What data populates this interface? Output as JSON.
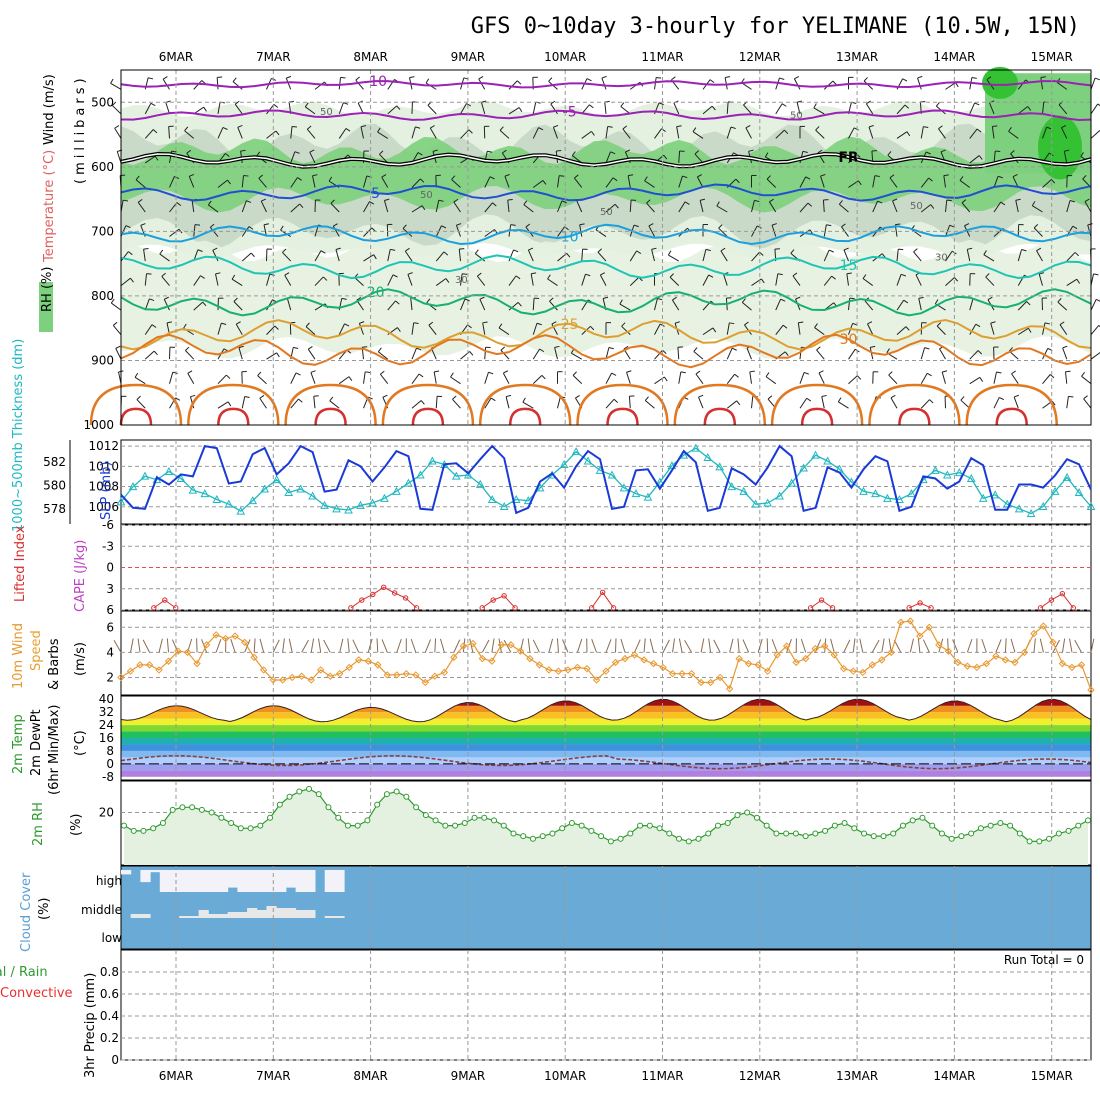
{
  "title": "GFS 0~10day 3-hourly for YELIMANE (10.5W, 15N)",
  "colors": {
    "rh_light": "#e4f1e0",
    "rh_mid": "#c6d6c4",
    "rh_green": "#7dd07d",
    "rh_bright": "#34c234",
    "temp_purple": "#9b22b5",
    "temp_blue": "#1f50d0",
    "temp_cyan": "#1aa0dd",
    "temp_teal": "#1ec4b4",
    "temp_green": "#18b070",
    "temp_gold": "#dda030",
    "temp_orange": "#e27820",
    "temp_red": "#d43030",
    "slp": "#1a3ad8",
    "thickness": "#20b8c0",
    "cape": "#c040c0",
    "lifted": "#d83030",
    "wind10": "#e89830",
    "dew": "#8a4040",
    "rh2m": "#2f9a2f",
    "cloud": "#6aaad6",
    "cloud_gap": "#f2f2f8"
  },
  "chart_data": [
    {
      "type": "heatmap",
      "panel": "upper-air",
      "ylabel": "(millibars)",
      "label_rh": "RH (%)",
      "label_temp": "Temperature (°C)",
      "label_wind": "Wind (m/s)",
      "ylim": [
        1000,
        450
      ],
      "yticks": [
        500,
        600,
        700,
        800,
        900,
        1000
      ],
      "temp_contours": [
        {
          "value": -10,
          "label": "-10",
          "pressure": 472
        },
        {
          "value": -5,
          "label": "-5",
          "pressure": 520
        },
        {
          "value": 0,
          "label": "FR",
          "pressure": 590
        },
        {
          "value": 5,
          "label": "5",
          "pressure": 640
        },
        {
          "value": 10,
          "label": "10",
          "pressure": 705
        },
        {
          "value": 15,
          "label": "15",
          "pressure": 755
        },
        {
          "value": 20,
          "label": "20",
          "pressure": 810
        },
        {
          "value": 25,
          "label": "25",
          "pressure": 860
        },
        {
          "value": 30,
          "label": "30",
          "pressure": 885
        }
      ],
      "rh_labels": [
        "50",
        "50",
        "50",
        "50",
        "50",
        "30",
        "30"
      ]
    },
    {
      "type": "line",
      "panel": "slp-thickness",
      "ylabel_left": "1000~500mb Thickness (dm)",
      "ylabel_right": "SLP (mb)",
      "yticks_left": [
        578,
        580,
        582
      ],
      "yticks_right": [
        1006,
        1008,
        1010,
        1012
      ],
      "ylim_slp": [
        1004.3,
        1012.6
      ],
      "ylim_thickness": [
        576.7,
        583.9
      ],
      "series": [
        {
          "name": "SLP",
          "values": [
            1007.2,
            1005.9,
            1005.8,
            1008.9,
            1008.2,
            1009.2,
            1009.0,
            1012.0,
            1011.8,
            1008.3,
            1008.5,
            1011.2,
            1011.8,
            1009.2,
            1010.3,
            1012.0,
            1011.4,
            1007.5,
            1007.7,
            1010.6,
            1010.0,
            1008.5,
            1009.9,
            1011.5,
            1011.0,
            1005.8,
            1005.7,
            1010.2,
            1010.3,
            1009.3,
            1010.7,
            1012.0,
            1010.8,
            1005.4,
            1005.9,
            1008.5,
            1009.3,
            1007.9,
            1010.0,
            1011.5,
            1010.7,
            1005.8,
            1006.0,
            1009.6,
            1009.7,
            1007.8,
            1009.6,
            1011.5,
            1010.4,
            1005.6,
            1005.9,
            1009.8,
            1009.2,
            1008.2,
            1009.9,
            1012.0,
            1011.0,
            1005.6,
            1005.9,
            1009.9,
            1009.4,
            1007.9,
            1009.7,
            1011.0,
            1010.5,
            1005.6,
            1006.0,
            1009.0,
            1008.8,
            1007.8,
            1008.5,
            1010.8,
            1010.1,
            1005.7,
            1005.7,
            1008.2,
            1008.2,
            1007.9,
            1009.1,
            1010.7,
            1010.2,
            1007.7
          ]
        },
        {
          "name": "Thickness",
          "values": [
            578.6,
            579.9,
            580.8,
            580.5,
            581.2,
            580.6,
            579.6,
            579.3,
            578.8,
            578.4,
            577.8,
            578.7,
            579.7,
            580.5,
            579.4,
            579.7,
            579.1,
            578.3,
            578.0,
            577.9,
            578.3,
            578.5,
            578.9,
            579.5,
            580.2,
            580.9,
            582.1,
            581.8,
            580.8,
            580.9,
            580.1,
            578.8,
            578.2,
            578.8,
            578.7,
            579.8,
            580.9,
            581.8,
            582.9,
            582.1,
            581.3,
            580.9,
            579.8,
            579.3,
            579.0,
            580.3,
            581.7,
            582.6,
            583.2,
            582.4,
            581.6,
            579.9,
            579.5,
            578.4,
            578.5,
            579.1,
            580.2,
            581.5,
            582.6,
            582.1,
            581.4,
            580.3,
            579.5,
            579.3,
            578.9,
            578.8,
            579.3,
            580.5,
            581.3,
            580.9,
            581.1,
            580.6,
            578.9,
            579.2,
            578.4,
            578.0,
            577.6,
            578.2,
            579.5,
            580.7,
            579.4,
            578.2
          ]
        }
      ]
    },
    {
      "type": "line",
      "panel": "cape-lifted",
      "ylabel_left": "Lifted Index",
      "ylabel_right": "CAPE (J/kg)",
      "yticks": [
        "-6",
        "-3",
        "0",
        "3",
        "6"
      ],
      "ylim": [
        -6,
        6
      ],
      "segments": [
        {
          "x": [
            3,
            4,
            5
          ],
          "values": [
            5.7,
            4.6,
            5.7
          ]
        },
        {
          "x": [
            21,
            22,
            23,
            24,
            25,
            26,
            27
          ],
          "values": [
            5.7,
            4.6,
            3.8,
            2.8,
            3.6,
            4.3,
            5.7
          ]
        },
        {
          "x": [
            33,
            34,
            35,
            36
          ],
          "values": [
            5.7,
            4.6,
            4.0,
            5.7
          ]
        },
        {
          "x": [
            43,
            44,
            45
          ],
          "values": [
            5.7,
            3.5,
            5.7
          ]
        },
        {
          "x": [
            63,
            64,
            65
          ],
          "values": [
            5.7,
            4.6,
            5.7
          ]
        },
        {
          "x": [
            72,
            73,
            74
          ],
          "values": [
            5.7,
            5.0,
            5.7
          ]
        },
        {
          "x": [
            84,
            85,
            86,
            87
          ],
          "values": [
            5.7,
            4.6,
            3.7,
            5.7
          ]
        },
        {
          "x": [
            96,
            97,
            98
          ],
          "values": [
            5.7,
            5.0,
            5.7
          ]
        }
      ]
    },
    {
      "type": "line",
      "panel": "wind10m",
      "ylabel": "10m Wind Speed & Barbs (m/s)",
      "label_wind": "10m Wind",
      "label_speed": "Speed",
      "label_barbs": "& Barbs",
      "label_units": "(m/s)",
      "yticks": [
        2,
        4,
        6
      ],
      "ylim": [
        0.6,
        7.3
      ],
      "values": [
        2.0,
        2.5,
        3.0,
        3.0,
        2.6,
        3.3,
        4.1,
        4.0,
        3.1,
        4.6,
        5.4,
        5.1,
        5.3,
        4.8,
        3.6,
        2.6,
        1.8,
        1.8,
        2.0,
        2.1,
        1.8,
        2.6,
        2.1,
        2.3,
        2.8,
        3.4,
        3.3,
        3.0,
        2.2,
        2.2,
        2.3,
        2.2,
        1.6,
        2.1,
        2.4,
        3.6,
        4.5,
        4.7,
        3.5,
        3.3,
        4.6,
        4.6,
        4.1,
        3.5,
        3.0,
        2.6,
        2.5,
        2.6,
        2.8,
        2.7,
        1.8,
        2.5,
        3.2,
        3.5,
        3.8,
        3.4,
        3.1,
        2.8,
        2.3,
        2.3,
        2.3,
        1.6,
        1.6,
        2.0,
        1.1,
        3.5,
        3.1,
        3.0,
        2.5,
        3.8,
        4.5,
        3.2,
        3.5,
        4.3,
        4.5,
        3.8,
        2.7,
        2.5,
        2.4,
        3.0,
        3.4,
        4.0,
        6.4,
        6.5,
        5.3,
        6.0,
        4.6,
        4.1,
        3.2,
        2.9,
        2.8,
        3.1,
        3.7,
        3.4,
        3.2,
        4.0,
        5.5,
        6.1,
        4.8,
        3.1,
        2.8,
        3.0,
        1.0
      ]
    },
    {
      "type": "area",
      "panel": "temp2m",
      "ylabel": "2m Temp 2m DewPt (6hr Min/Max) (°C)",
      "label_temp": "2m Temp",
      "label_dew": "2m DewPt",
      "label_minmax": "(6hr Min/Max)",
      "label_units": "(°C)",
      "yticks": [
        "-8",
        "0",
        "8",
        "16",
        "24",
        "32",
        "40"
      ],
      "ylim": [
        -10,
        42
      ],
      "band_edges": [
        -8,
        -4,
        0,
        4,
        8,
        12,
        16,
        20,
        24,
        28,
        32,
        36,
        40
      ],
      "band_colors": [
        "#b080e0",
        "#9f9fef",
        "#b0cfff",
        "#80b8f0",
        "#3f90e0",
        "#20b0b0",
        "#20c060",
        "#80d830",
        "#f0f030",
        "#f8c020",
        "#f09020",
        "#e85020"
      ],
      "temp_peaks": [
        36,
        36,
        35,
        38,
        39,
        40,
        40,
        40,
        39,
        40
      ],
      "temp_troughs": [
        27,
        26,
        26,
        26,
        27,
        27,
        27,
        28,
        27,
        26
      ]
    },
    {
      "type": "area",
      "panel": "rh2m",
      "ylabel": "2m RH (%)",
      "label_rh": "2m RH",
      "label_units": "(%)",
      "yticks": [
        20
      ],
      "ylim": [
        0,
        32
      ],
      "values": [
        15,
        13,
        13,
        14,
        16,
        21,
        22,
        22,
        21,
        20,
        18,
        16,
        14,
        14,
        15,
        18,
        23,
        26,
        28,
        29,
        27,
        22,
        18,
        15,
        15,
        17,
        23,
        27,
        28,
        26,
        22,
        19,
        17,
        15,
        15,
        16,
        18,
        18,
        17,
        15,
        12,
        11,
        10,
        11,
        12,
        14,
        16,
        15,
        13,
        11,
        9,
        10,
        12,
        15,
        15,
        14,
        12,
        10,
        9,
        10,
        12,
        15,
        16,
        19,
        20,
        18,
        15,
        12,
        12,
        12,
        11,
        12,
        13,
        15,
        16,
        14,
        12,
        11,
        11,
        12,
        15,
        17,
        18,
        15,
        12,
        10,
        11,
        12,
        14,
        15,
        16,
        15,
        12,
        9,
        9,
        10,
        12,
        13,
        15,
        17
      ]
    },
    {
      "type": "table",
      "panel": "cloud",
      "ylabel": "Cloud Cover (%)",
      "label_cloud": "Cloud Cover",
      "label_units": "(%)",
      "levels": [
        "high",
        "middle",
        "low"
      ],
      "high": [
        20,
        0,
        55,
        10,
        100,
        100,
        100,
        100,
        100,
        100,
        100,
        80,
        100,
        100,
        100,
        100,
        100,
        80,
        100,
        100,
        0,
        100,
        100,
        0,
        0,
        0,
        0,
        0,
        0,
        0,
        0,
        0,
        0,
        0,
        0,
        0,
        0,
        0,
        0,
        0,
        0,
        0,
        0,
        0,
        0,
        0,
        0,
        0,
        0,
        0,
        0,
        0,
        0,
        0,
        0,
        0,
        0,
        0,
        0,
        0,
        0,
        0,
        0,
        0,
        0,
        0,
        0,
        0,
        0,
        0,
        0,
        0,
        0,
        0,
        0,
        0,
        0,
        0,
        0,
        0,
        0,
        0,
        0,
        0,
        0,
        0,
        0,
        0,
        0,
        0,
        0,
        0,
        0,
        0,
        0,
        0,
        0,
        0,
        0,
        0
      ],
      "middle": [
        0,
        20,
        20,
        0,
        0,
        0,
        10,
        10,
        40,
        20,
        20,
        30,
        30,
        50,
        40,
        60,
        50,
        50,
        40,
        40,
        0,
        10,
        10,
        0,
        0,
        0,
        0,
        0,
        0,
        0,
        0,
        0,
        0,
        0,
        0,
        0,
        0,
        0,
        0,
        0,
        0,
        0,
        0,
        0,
        0,
        0,
        0,
        0,
        0,
        0,
        0,
        0,
        0,
        0,
        0,
        0,
        0,
        0,
        0,
        0,
        0,
        0,
        0,
        0,
        0,
        0,
        0,
        0,
        0,
        0,
        0,
        0,
        0,
        0,
        0,
        0,
        0,
        0,
        0,
        0,
        0,
        0,
        0,
        0,
        0,
        0,
        0,
        0,
        0,
        0,
        0,
        0,
        0,
        0,
        0,
        0,
        0,
        0,
        0,
        0
      ]
    },
    {
      "type": "bar",
      "panel": "precip",
      "ylabel": "3hr Precip (mm)",
      "label_total": "Total / Rain",
      "label_conv": "Convective",
      "label_precip": "3hr Precip (mm)",
      "yticks": [
        "0",
        "0.2",
        "0.4",
        "0.6",
        "0.8"
      ],
      "ylim": [
        0,
        1
      ],
      "values": [],
      "annotation": "Run Total = 0"
    }
  ],
  "x_axis": {
    "labels": [
      "6MAR",
      "7MAR",
      "8MAR",
      "9MAR",
      "10MAR",
      "11MAR",
      "12MAR",
      "13MAR",
      "14MAR",
      "15MAR"
    ]
  }
}
